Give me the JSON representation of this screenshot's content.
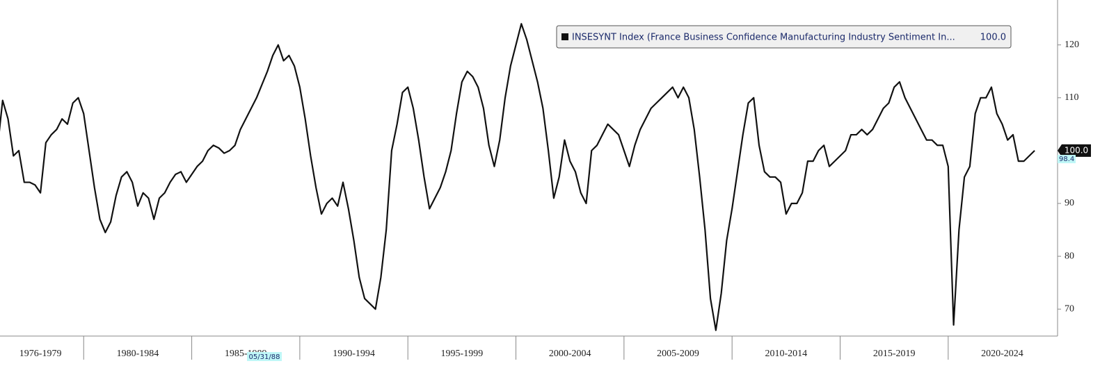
{
  "chart_data": {
    "type": "line",
    "categories": [
      "1976-1979",
      "1980-1984",
      "1985-1989",
      "1990-1994",
      "1995-1999",
      "2000-2004",
      "2005-2009",
      "2010-2014",
      "2015-2019",
      "2020-2024"
    ],
    "series": [
      {
        "name": "INSESYNT Index (France Business Confidence Manufacturing Industry Sentiment In...",
        "color": "#111111",
        "last_value_label": "100.0",
        "values": [
          [
            100,
            109.5,
            106,
            99,
            100,
            94,
            94,
            93.5,
            92,
            101.5,
            103,
            104,
            106,
            105,
            109,
            110
          ],
          [
            107,
            100,
            93,
            87,
            84.5,
            86.5,
            91.5,
            95,
            96,
            94,
            89.5,
            92,
            91,
            87,
            91,
            92,
            94,
            95.5,
            96,
            94
          ],
          [
            95.5,
            97,
            98,
            100,
            101,
            100.5,
            99.5,
            100,
            101,
            104,
            106,
            108,
            110,
            112.5,
            115,
            118,
            120,
            117,
            118,
            116
          ],
          [
            112,
            106,
            99,
            93,
            88,
            90,
            91,
            89.5,
            94,
            89,
            83,
            76,
            72,
            71,
            70,
            76,
            85,
            100,
            105,
            111
          ],
          [
            112,
            108,
            102,
            95,
            89,
            91,
            93,
            96,
            100,
            107,
            113,
            115,
            114,
            112,
            108,
            101,
            97,
            102,
            110,
            116
          ],
          [
            120,
            124,
            121,
            117,
            113,
            108,
            100,
            91,
            95,
            102,
            98,
            96,
            92,
            90,
            100,
            101,
            103,
            105,
            104,
            103
          ],
          [
            100,
            97,
            101,
            104,
            106,
            108,
            109,
            110,
            111,
            112,
            110,
            112,
            110,
            104,
            95,
            85,
            72,
            66,
            73,
            83
          ],
          [
            89,
            96,
            103,
            109,
            110,
            101,
            96,
            95,
            95,
            94,
            88,
            90,
            90,
            92,
            98,
            98,
            100,
            101,
            97,
            98
          ],
          [
            99,
            100,
            103,
            103,
            104,
            103,
            104,
            106,
            108,
            109,
            112,
            113,
            110,
            108,
            106,
            104,
            102,
            102,
            101,
            101
          ],
          [
            97,
            67,
            85,
            95,
            97,
            107,
            110,
            110,
            112,
            107,
            105,
            102,
            103,
            98,
            98,
            99,
            100
          ]
        ]
      }
    ],
    "ylim": [
      64.9,
      128.5
    ],
    "yticks": [
      70,
      80,
      90,
      100,
      110,
      120
    ],
    "axis_side": "right",
    "grid": false,
    "annotations": {
      "cursor_date": "05/31/88",
      "marker_value": 98.4
    }
  }
}
